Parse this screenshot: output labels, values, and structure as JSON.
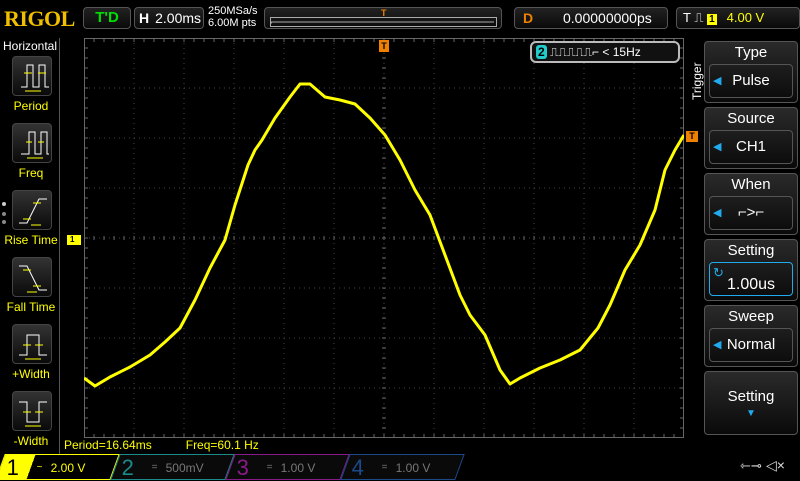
{
  "header": {
    "logo": "RIGOL",
    "run_status": "T'D",
    "horizontal_label": "H",
    "timebase": "2.00ms",
    "sample_rate": "250MSa/s",
    "memory_depth": "6.00M pts",
    "delay_label": "D",
    "delay": "0.00000000ps",
    "trigger_label": "T",
    "trigger_source": "1",
    "trigger_level": "4.00 V"
  },
  "left_panel": {
    "title": "Horizontal",
    "items": [
      {
        "label": "Period",
        "icon": "period-icon"
      },
      {
        "label": "Freq",
        "icon": "freq-icon"
      },
      {
        "label": "Rise Time",
        "icon": "rise-time-icon"
      },
      {
        "label": "Fall Time",
        "icon": "fall-time-icon"
      },
      {
        "label": "+Width",
        "icon": "pos-width-icon"
      },
      {
        "label": "-Width",
        "icon": "neg-width-icon"
      }
    ]
  },
  "screen": {
    "ch1_marker": "1",
    "trigger_marker": "T",
    "pulse_trigger": {
      "channel": "2",
      "condition": "< 15Hz"
    }
  },
  "measurements": {
    "period": "Period=16.64ms",
    "freq": "Freq=60.1 Hz"
  },
  "trigger_menu": {
    "title": "Trigger",
    "items": [
      {
        "label": "Type",
        "value": "Pulse"
      },
      {
        "label": "Source",
        "value": "CH1"
      },
      {
        "label": "When",
        "value": "⌐>⌐"
      },
      {
        "label": "Setting",
        "value": "1.00us"
      },
      {
        "label": "Sweep",
        "value": "Normal"
      },
      {
        "label": "Setting",
        "value": ""
      }
    ]
  },
  "channels": [
    {
      "num": "1",
      "coupling": "~",
      "scale": "2.00 V",
      "color": "#ffff00"
    },
    {
      "num": "2",
      "coupling": "=",
      "scale": "500mV",
      "color": "#1a8a8a"
    },
    {
      "num": "3",
      "coupling": "=",
      "scale": "1.00 V",
      "color": "#8a1a8a"
    },
    {
      "num": "4",
      "coupling": "=",
      "scale": "1.00 V",
      "color": "#1a4a8a"
    }
  ],
  "colors": {
    "ch1": "#ffff00",
    "trigger": "#f08000",
    "accent": "#22aaee"
  },
  "waveform": {
    "time_ms_per_div": 2,
    "volts_per_div": 2,
    "points_ms_v": [
      [
        -12,
        -5.52
      ],
      [
        -11.56,
        -5.84
      ],
      [
        -10.96,
        -5.48
      ],
      [
        -10.16,
        -5.08
      ],
      [
        -9.36,
        -4.6
      ],
      [
        -8.76,
        -4.08
      ],
      [
        -8.16,
        -3.52
      ],
      [
        -7.56,
        -2.4
      ],
      [
        -6.96,
        -1.12
      ],
      [
        -6.36,
        0
      ],
      [
        -5.96,
        1.4
      ],
      [
        -5.44,
        3.0
      ],
      [
        -5.16,
        3.6
      ],
      [
        -4.88,
        4.0
      ],
      [
        -4.36,
        4.88
      ],
      [
        -3.76,
        5.72
      ],
      [
        -3.36,
        6.24
      ],
      [
        -2.96,
        6.24
      ],
      [
        -2.36,
        5.72
      ],
      [
        -1.76,
        5.6
      ],
      [
        -1.16,
        5.44
      ],
      [
        -0.56,
        4.88
      ],
      [
        0.04,
        4.2
      ],
      [
        0.64,
        3.2
      ],
      [
        1.24,
        2.0
      ],
      [
        1.84,
        1.0
      ],
      [
        2.44,
        -0.6
      ],
      [
        3.04,
        -2.2
      ],
      [
        3.44,
        -3.0
      ],
      [
        4.04,
        -3.8
      ],
      [
        4.64,
        -5.2
      ],
      [
        5.04,
        -5.76
      ],
      [
        5.44,
        -5.52
      ],
      [
        6.24,
        -5.12
      ],
      [
        7.04,
        -4.8
      ],
      [
        7.84,
        -4.4
      ],
      [
        8.56,
        -3.52
      ],
      [
        9.04,
        -2.6
      ],
      [
        9.64,
        -1.2
      ],
      [
        10.24,
        -0.2
      ],
      [
        10.84,
        1.2
      ],
      [
        11.24,
        2.8
      ],
      [
        11.64,
        3.6
      ],
      [
        12,
        4.2
      ]
    ]
  }
}
